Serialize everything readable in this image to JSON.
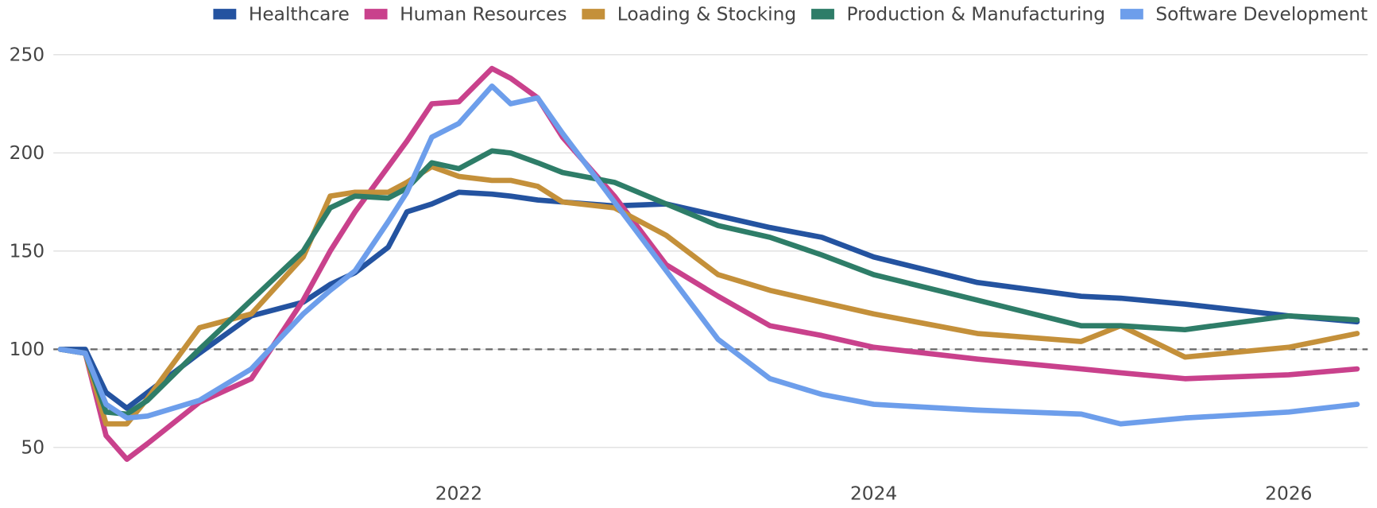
{
  "chart_data": {
    "type": "line",
    "x": [
      2020.08,
      2020.2,
      2020.3,
      2020.4,
      2020.5,
      2020.75,
      2021.0,
      2021.25,
      2021.38,
      2021.5,
      2021.66,
      2021.75,
      2021.87,
      2022.0,
      2022.16,
      2022.25,
      2022.38,
      2022.5,
      2022.75,
      2023.0,
      2023.25,
      2023.5,
      2023.75,
      2024.0,
      2024.5,
      2025.0,
      2025.19,
      2025.5,
      2026.0,
      2026.33
    ],
    "series": [
      {
        "name": "Healthcare",
        "color": "#2453a0",
        "values": [
          100,
          100,
          78,
          70,
          78,
          98,
          117,
          124,
          133,
          139,
          152,
          170,
          174,
          180,
          179,
          178,
          176,
          175,
          173,
          174,
          168,
          162,
          157,
          147,
          134,
          127,
          126,
          123,
          117,
          114
        ]
      },
      {
        "name": "Human Resources",
        "color": "#c9418c",
        "values": [
          100,
          98,
          56,
          44,
          52,
          73,
          85,
          125,
          150,
          170,
          193,
          206,
          225,
          226,
          243,
          238,
          228,
          208,
          178,
          143,
          127,
          112,
          107,
          101,
          95,
          90,
          88,
          85,
          87,
          90
        ]
      },
      {
        "name": "Loading & Stocking",
        "color": "#c4903a",
        "values": [
          100,
          98,
          62,
          62,
          75,
          111,
          118,
          147,
          178,
          180,
          180,
          185,
          193,
          188,
          186,
          186,
          183,
          175,
          172,
          158,
          138,
          130,
          124,
          118,
          108,
          104,
          112,
          96,
          101,
          108
        ]
      },
      {
        "name": "Production & Manufacturing",
        "color": "#2e7d68",
        "values": [
          100,
          98,
          68,
          67,
          74,
          100,
          125,
          150,
          172,
          178,
          177,
          182,
          195,
          192,
          201,
          200,
          195,
          190,
          185,
          174,
          163,
          157,
          148,
          138,
          125,
          112,
          112,
          110,
          117,
          115
        ]
      },
      {
        "name": "Software Development",
        "color": "#6d9eeb",
        "values": [
          100,
          98,
          72,
          65,
          66,
          74,
          90,
          118,
          130,
          140,
          165,
          180,
          208,
          215,
          234,
          225,
          228,
          210,
          175,
          140,
          105,
          85,
          77,
          72,
          69,
          67,
          62,
          65,
          68,
          72
        ]
      }
    ],
    "xlim": [
      2020.08,
      2026.33
    ],
    "xticks": [
      2022,
      2024,
      2026
    ],
    "ylim": [
      40,
      255
    ],
    "yticks": [
      50,
      100,
      150,
      200,
      250
    ],
    "reference_line": 100,
    "grid": true,
    "legend": "top-right"
  }
}
